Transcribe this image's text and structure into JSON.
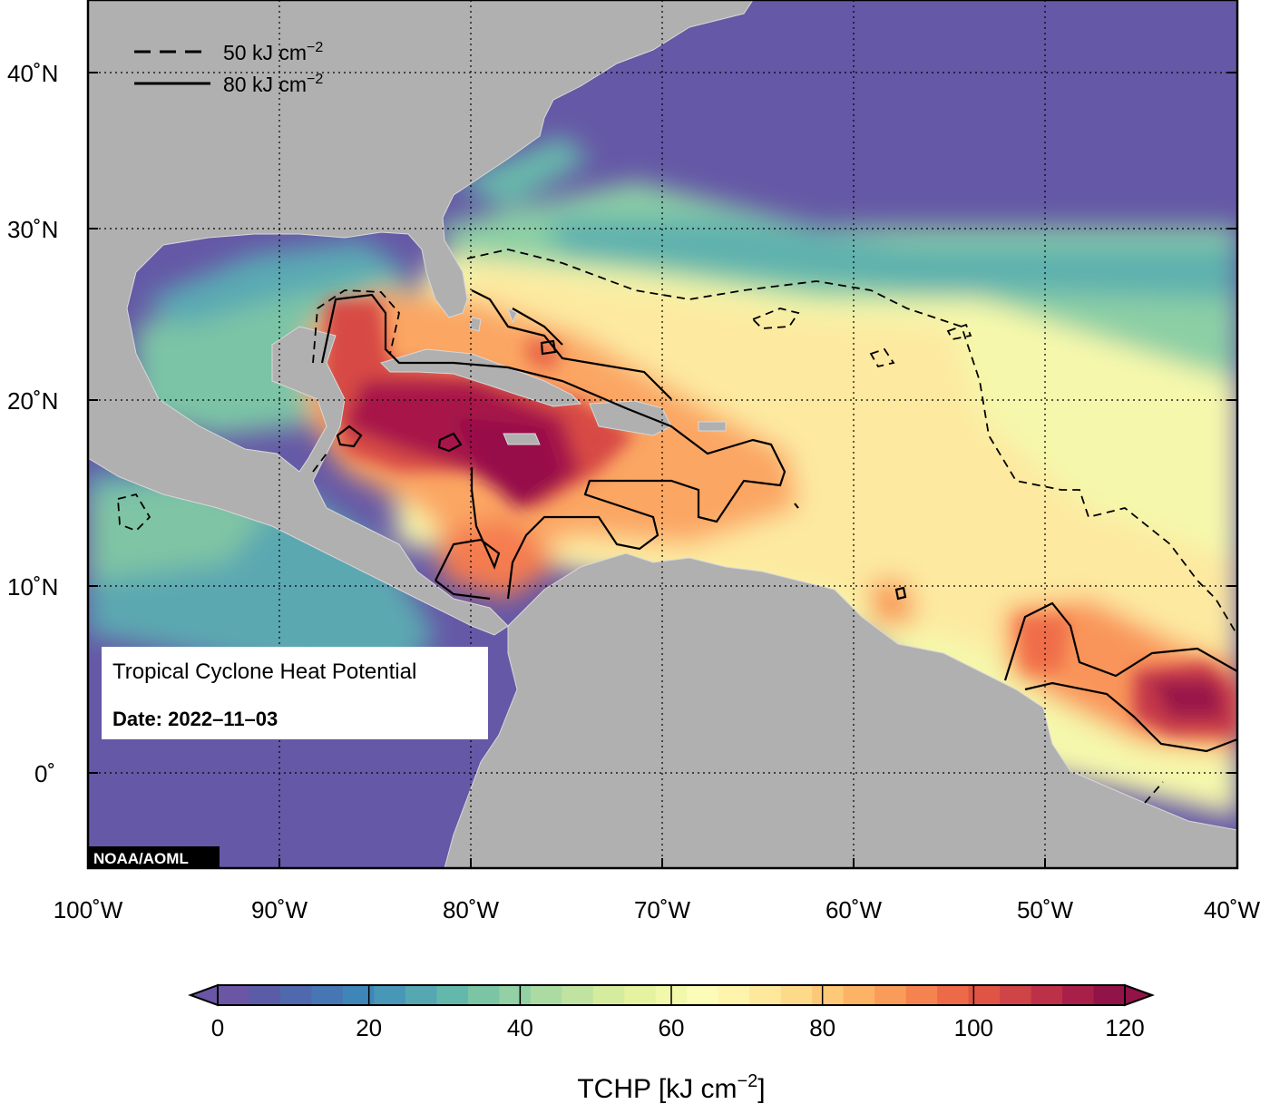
{
  "map": {
    "title": "Tropical Cyclone Heat Potential",
    "date_label": "Date: 2022–11–03",
    "credit": "NOAA/AOML",
    "lat_labels": [
      "40˚N",
      "30˚N",
      "20˚N",
      "10˚N",
      "0˚"
    ],
    "lon_labels": [
      "100˚W",
      "90˚W",
      "80˚W",
      "70˚W",
      "60˚W",
      "50˚W",
      "40˚W"
    ],
    "legend": {
      "dashed": {
        "value": "50 kJ cm",
        "exp": "−2"
      },
      "solid": {
        "value": "80 kJ cm",
        "exp": "−2"
      }
    },
    "land_color": "#b0b0b0",
    "ocean_low_color": "#6558a6"
  },
  "colorbar": {
    "ticks": [
      "0",
      "20",
      "40",
      "60",
      "80",
      "100",
      "120"
    ],
    "title": "TCHP [kJ cm",
    "title_exp": "−2",
    "title_end": "]",
    "colors": [
      "#6a56a5",
      "#5a5ca8",
      "#4f68ae",
      "#4676b3",
      "#3e86b8",
      "#4797b7",
      "#55a7b2",
      "#64b7ab",
      "#7bc5a4",
      "#93d0a4",
      "#abdba3",
      "#c0e3a1",
      "#d5ec9f",
      "#e5f3a1",
      "#f1f8aa",
      "#fbfcb8",
      "#fef4ab",
      "#fee89b",
      "#fdd98a",
      "#fdc877",
      "#fcb366",
      "#fa9c59",
      "#f5834f",
      "#ed6a48",
      "#e05445",
      "#cf4446",
      "#bd3148",
      "#a8204a",
      "#921348"
    ]
  }
}
